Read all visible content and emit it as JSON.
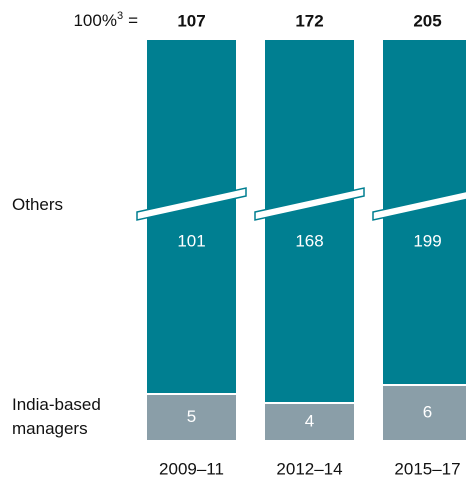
{
  "chart_data": {
    "type": "stacked_bar",
    "total_label": {
      "text": "100%",
      "note": "3",
      "suffix": "="
    },
    "totals": [
      107,
      172,
      205
    ],
    "categories": [
      "2009–11",
      "2012–14",
      "2015–17"
    ],
    "series": [
      {
        "name": "India-based managers",
        "color": "#8a9ea8",
        "values": [
          5,
          4,
          6
        ]
      },
      {
        "name": "Others",
        "color": "#007f91",
        "values": [
          101,
          168,
          199
        ]
      }
    ],
    "axis_break": true
  }
}
